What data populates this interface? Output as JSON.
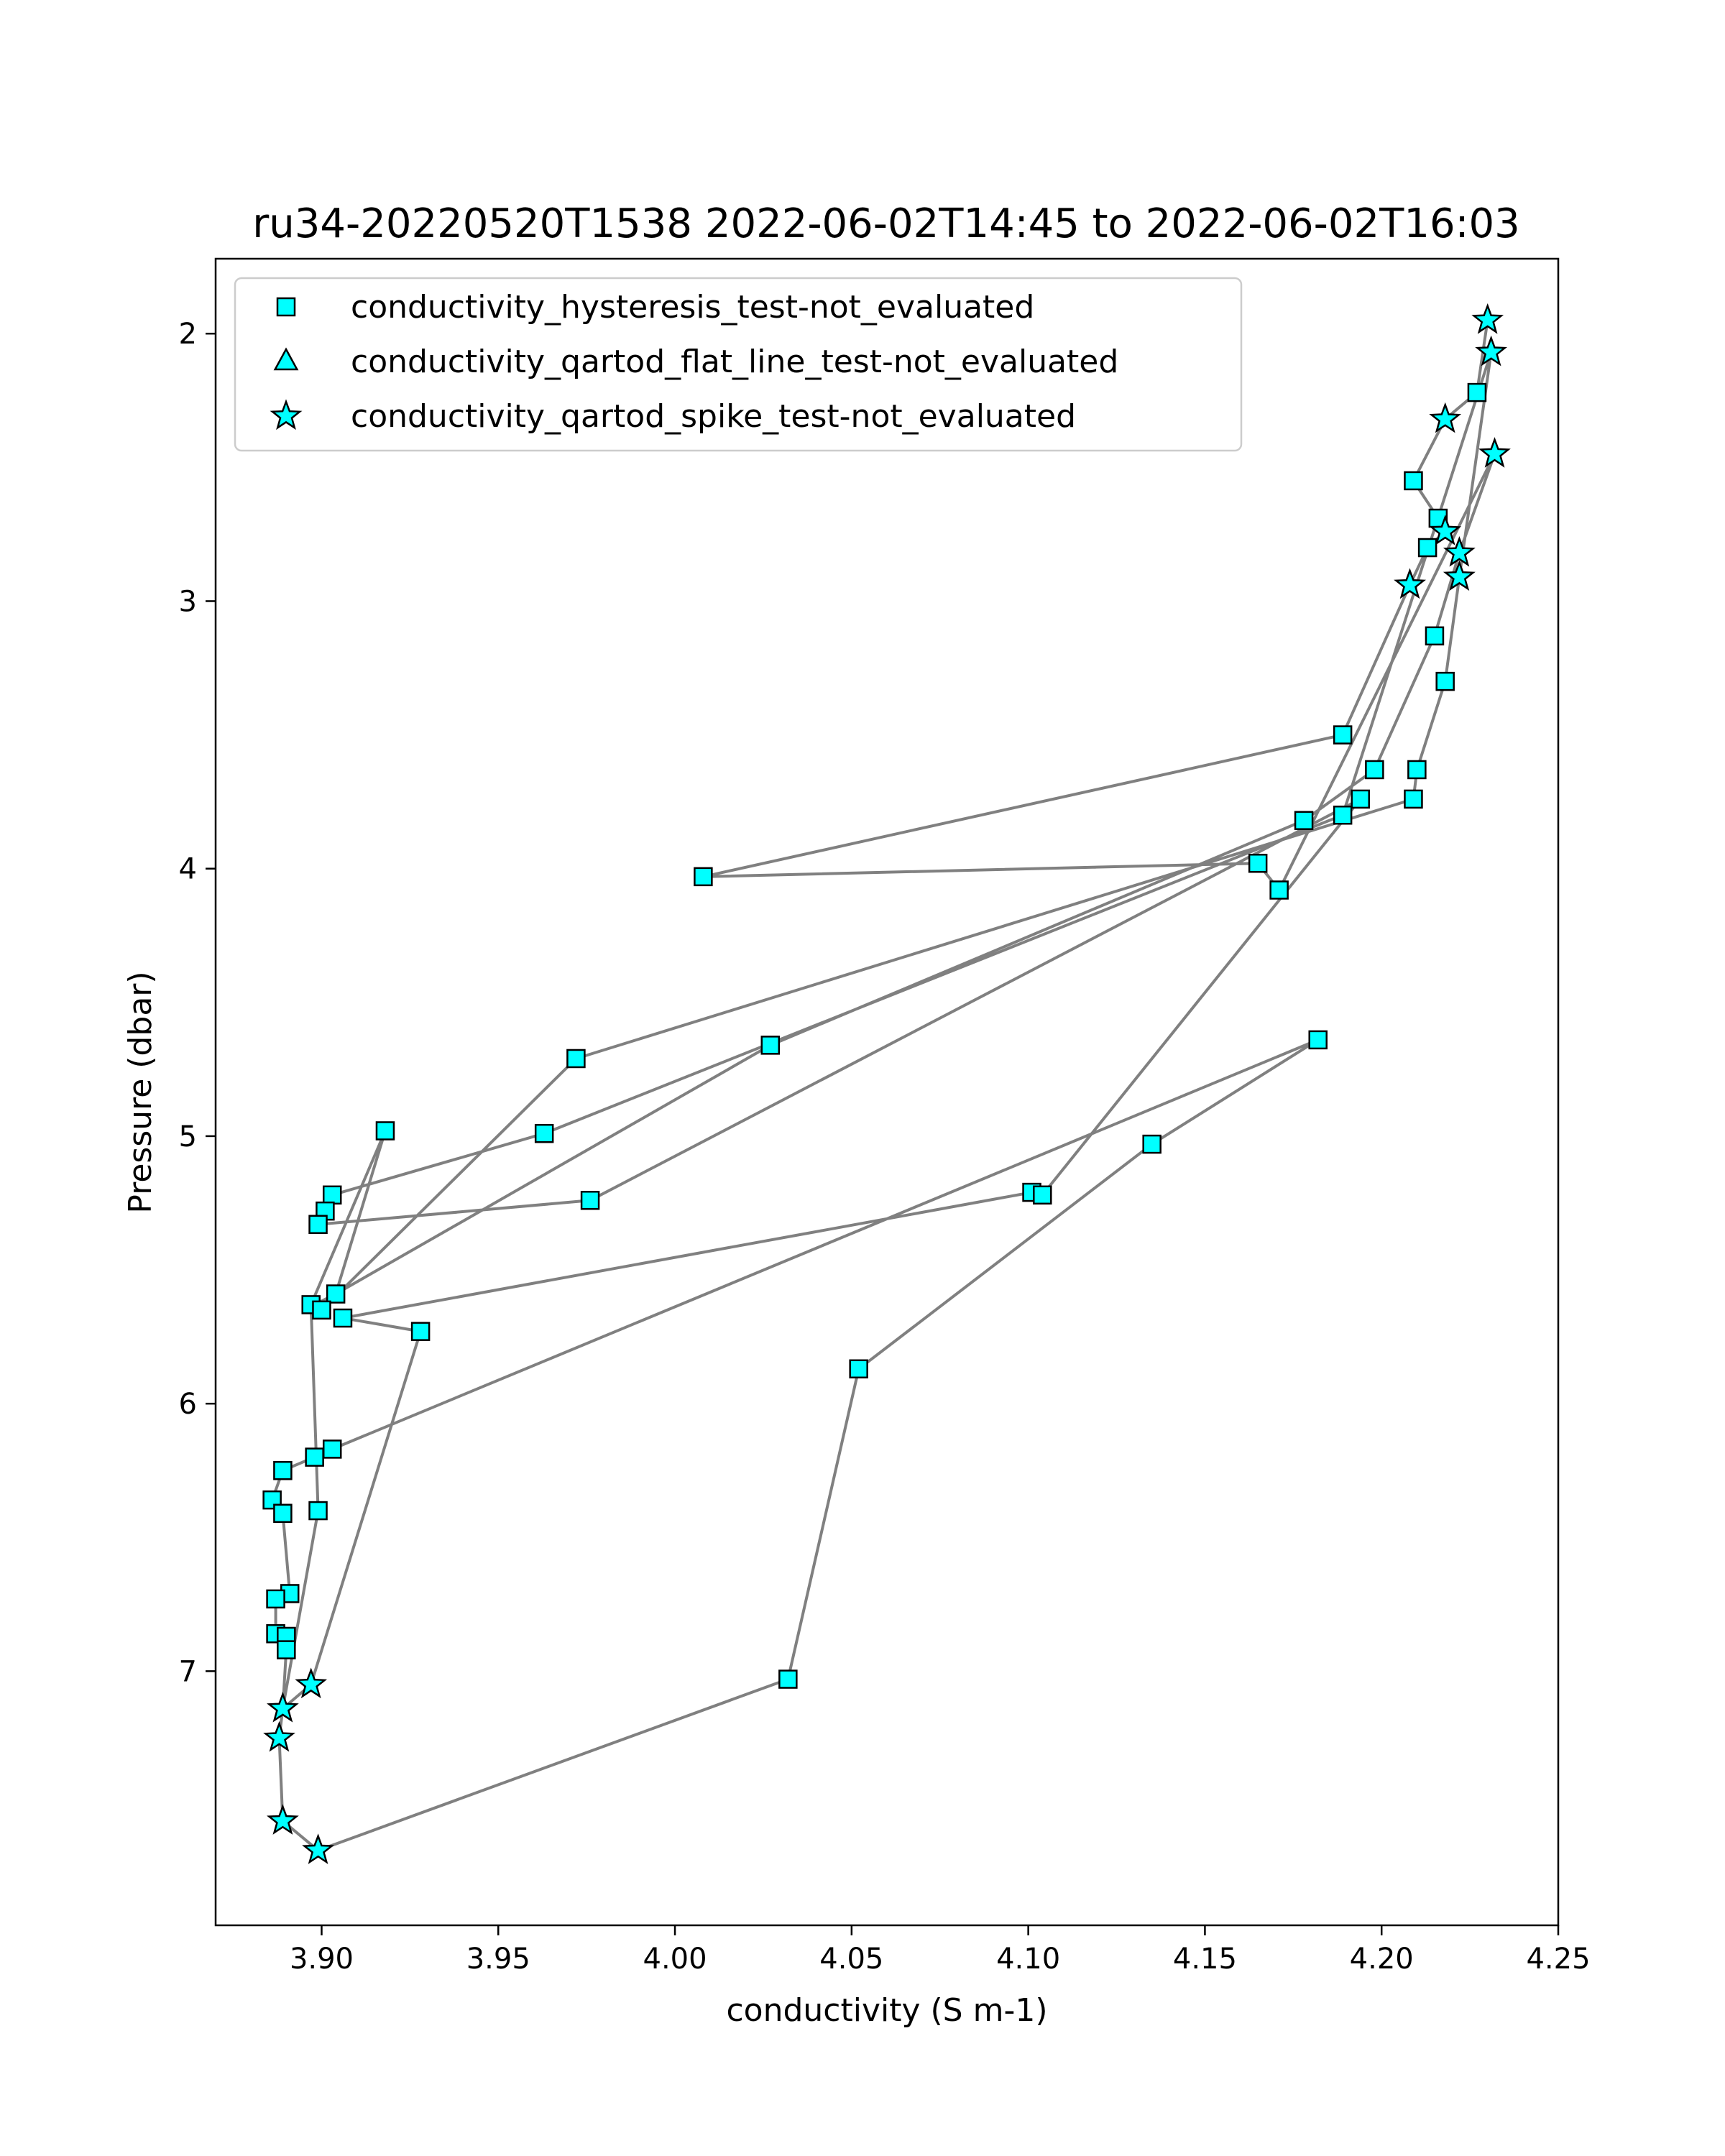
{
  "chart_data": {
    "type": "scatter",
    "title": "ru34-20220520T1538 2022-06-02T14:45 to 2022-06-02T16:03",
    "xlabel": "conductivity (S m-1)",
    "ylabel": "Pressure (dbar)",
    "xlim": [
      3.87,
      4.25
    ],
    "ylim": [
      7.95,
      1.72
    ],
    "y_inverted": true,
    "xticks": [
      "3.90",
      "3.95",
      "4.00",
      "4.05",
      "4.10",
      "4.15",
      "4.20",
      "4.25"
    ],
    "xtick_values": [
      3.9,
      3.95,
      4.0,
      4.05,
      4.1,
      4.15,
      4.2,
      4.25
    ],
    "yticks": [
      "2",
      "3",
      "4",
      "5",
      "6",
      "7"
    ],
    "ytick_values": [
      2,
      3,
      4,
      5,
      6,
      7
    ],
    "grid": false,
    "legend_position": "top-left",
    "line_color": "#808080",
    "marker_color": "#00ffff",
    "marker_edge": "#000000",
    "profile_line": [
      [
        4.23,
        1.95
      ],
      [
        4.227,
        2.22
      ],
      [
        4.218,
        2.32
      ],
      [
        4.209,
        2.55
      ],
      [
        4.216,
        2.69
      ],
      [
        4.218,
        2.74
      ],
      [
        4.213,
        2.8
      ],
      [
        4.208,
        2.94
      ],
      [
        4.189,
        3.5
      ],
      [
        4.008,
        4.03
      ],
      [
        4.165,
        3.98
      ],
      [
        4.171,
        4.08
      ],
      [
        4.232,
        2.45
      ],
      [
        4.222,
        2.82
      ],
      [
        4.215,
        3.13
      ],
      [
        4.198,
        3.63
      ],
      [
        4.178,
        3.82
      ],
      [
        4.027,
        4.66
      ],
      [
        3.904,
        5.59
      ],
      [
        3.898,
        5.63
      ],
      [
        3.9,
        5.65
      ],
      [
        3.972,
        4.71
      ],
      [
        4.209,
        3.74
      ],
      [
        4.21,
        3.63
      ],
      [
        4.218,
        3.3
      ],
      [
        4.222,
        2.91
      ],
      [
        4.231,
        2.07
      ],
      [
        4.189,
        3.8
      ],
      [
        3.963,
        4.99
      ],
      [
        3.903,
        5.22
      ],
      [
        3.901,
        5.28
      ],
      [
        3.899,
        5.33
      ],
      [
        3.976,
        5.24
      ],
      [
        4.194,
        3.74
      ],
      [
        4.104,
        5.22
      ],
      [
        4.101,
        5.21
      ],
      [
        3.906,
        5.68
      ],
      [
        3.928,
        5.73
      ],
      [
        3.897,
        7.05
      ],
      [
        3.889,
        7.14
      ],
      [
        3.888,
        7.25
      ],
      [
        3.889,
        7.56
      ],
      [
        3.899,
        7.67
      ],
      [
        4.032,
        7.03
      ],
      [
        4.052,
        5.87
      ],
      [
        4.135,
        5.03
      ],
      [
        4.182,
        4.64
      ],
      [
        3.903,
        6.17
      ],
      [
        3.898,
        6.2
      ],
      [
        3.889,
        6.25
      ],
      [
        3.886,
        6.36
      ],
      [
        3.889,
        6.41
      ],
      [
        3.891,
        6.71
      ],
      [
        3.887,
        6.73
      ],
      [
        3.887,
        6.86
      ],
      [
        3.89,
        6.87
      ],
      [
        3.89,
        6.92
      ],
      [
        3.889,
        7.14
      ],
      [
        3.899,
        6.4
      ],
      [
        3.897,
        5.63
      ],
      [
        3.918,
        4.98
      ],
      [
        3.904,
        5.59
      ]
    ],
    "series": [
      {
        "name": "conductivity_hysteresis_test-not_evaluated",
        "marker": "square",
        "points": [
          [
            4.227,
            2.22
          ],
          [
            4.209,
            2.55
          ],
          [
            4.216,
            2.69
          ],
          [
            4.213,
            2.8
          ],
          [
            4.215,
            3.13
          ],
          [
            4.218,
            3.3
          ],
          [
            4.189,
            3.5
          ],
          [
            4.198,
            3.63
          ],
          [
            4.21,
            3.63
          ],
          [
            4.194,
            3.74
          ],
          [
            4.209,
            3.74
          ],
          [
            4.189,
            3.8
          ],
          [
            4.178,
            3.82
          ],
          [
            4.165,
            3.98
          ],
          [
            4.008,
            4.03
          ],
          [
            4.171,
            4.08
          ],
          [
            4.182,
            4.64
          ],
          [
            4.027,
            4.66
          ],
          [
            3.972,
            4.71
          ],
          [
            3.918,
            4.98
          ],
          [
            3.963,
            4.99
          ],
          [
            4.135,
            5.03
          ],
          [
            4.101,
            5.21
          ],
          [
            4.104,
            5.22
          ],
          [
            3.903,
            5.22
          ],
          [
            3.976,
            5.24
          ],
          [
            3.901,
            5.28
          ],
          [
            3.899,
            5.33
          ],
          [
            3.904,
            5.59
          ],
          [
            3.897,
            5.63
          ],
          [
            3.9,
            5.65
          ],
          [
            3.906,
            5.68
          ],
          [
            3.928,
            5.73
          ],
          [
            4.052,
            5.87
          ],
          [
            3.903,
            6.17
          ],
          [
            3.898,
            6.2
          ],
          [
            3.889,
            6.25
          ],
          [
            3.886,
            6.36
          ],
          [
            3.899,
            6.4
          ],
          [
            3.889,
            6.41
          ],
          [
            3.891,
            6.71
          ],
          [
            3.887,
            6.73
          ],
          [
            3.887,
            6.86
          ],
          [
            3.89,
            6.87
          ],
          [
            3.89,
            6.92
          ],
          [
            4.032,
            7.03
          ]
        ]
      },
      {
        "name": "conductivity_qartod_flat_line_test-not_evaluated",
        "marker": "triangle",
        "points": []
      },
      {
        "name": "conductivity_qartod_spike_test-not_evaluated",
        "marker": "star",
        "points": [
          [
            4.23,
            1.95
          ],
          [
            4.231,
            2.07
          ],
          [
            4.218,
            2.32
          ],
          [
            4.232,
            2.45
          ],
          [
            4.218,
            2.74
          ],
          [
            4.222,
            2.82
          ],
          [
            4.208,
            2.94
          ],
          [
            4.222,
            2.91
          ],
          [
            3.897,
            7.05
          ],
          [
            3.889,
            7.14
          ],
          [
            3.888,
            7.25
          ],
          [
            3.889,
            7.56
          ],
          [
            3.899,
            7.67
          ]
        ]
      }
    ]
  }
}
